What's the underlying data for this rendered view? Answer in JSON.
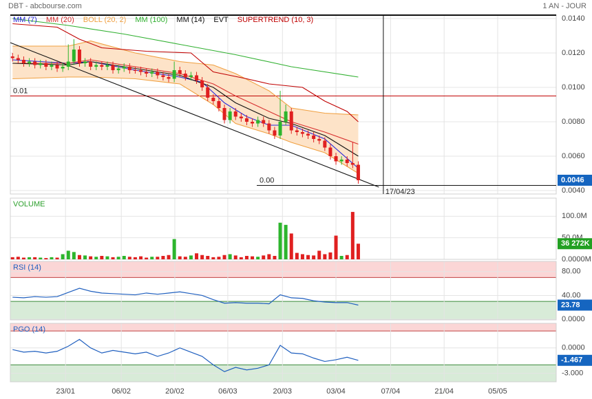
{
  "header": {
    "title": "DBT - abcbourse.com",
    "period": "1 AN - JOUR"
  },
  "chart_data": [
    {
      "type": "candlestick",
      "xlim": [
        -0.4,
        97.5
      ],
      "xticks": [
        {
          "value": 9.5,
          "label": "23/01"
        },
        {
          "value": 19.5,
          "label": "06/02"
        },
        {
          "value": 29.1,
          "label": "20/02"
        },
        {
          "value": 38.6,
          "label": "06/03"
        },
        {
          "value": 48.4,
          "label": "20/03"
        },
        {
          "value": 58.0,
          "label": "03/04"
        },
        {
          "value": 67.8,
          "label": "07/04"
        },
        {
          "value": 77.4,
          "label": "21/04"
        },
        {
          "value": 87.0,
          "label": "05/05"
        }
      ],
      "ylim": [
        0.0038,
        0.0142
      ],
      "yticks": [
        {
          "value": 0.004,
          "label": "0.0040"
        },
        {
          "value": 0.006,
          "label": "0.0060"
        },
        {
          "value": 0.008,
          "label": "0.0080"
        },
        {
          "value": 0.01,
          "label": "0.0100"
        },
        {
          "value": 0.012,
          "label": "0.0120"
        },
        {
          "value": 0.014,
          "label": "0.0140"
        }
      ],
      "grid": true,
      "up_color": "#2db52d",
      "down_color": "#e02020",
      "open": [
        0.0118,
        0.0117,
        0.0116,
        0.0114,
        0.0115,
        0.0113,
        0.0114,
        0.0112,
        0.0113,
        0.0111,
        0.0112,
        0.0115,
        0.0122,
        0.0114,
        0.0115,
        0.0112,
        0.0113,
        0.0112,
        0.0113,
        0.011,
        0.0111,
        0.0112,
        0.011,
        0.011,
        0.0109,
        0.0108,
        0.0109,
        0.0107,
        0.0106,
        0.0105,
        0.011,
        0.0108,
        0.0106,
        0.0107,
        0.0104,
        0.01,
        0.0094,
        0.0092,
        0.0088,
        0.0081,
        0.0086,
        0.0083,
        0.0082,
        0.008,
        0.0079,
        0.0081,
        0.0079,
        0.0075,
        0.0072,
        0.008,
        0.0086,
        0.0075,
        0.0074,
        0.0073,
        0.0072,
        0.007,
        0.0069,
        0.0065,
        0.006,
        0.0057,
        0.0058,
        0.0056,
        0.0055
      ],
      "high": [
        0.012,
        0.0119,
        0.0118,
        0.0117,
        0.0117,
        0.0116,
        0.0116,
        0.0115,
        0.0115,
        0.0114,
        0.0125,
        0.0128,
        0.0124,
        0.0117,
        0.0117,
        0.0115,
        0.0115,
        0.0115,
        0.0115,
        0.0113,
        0.0114,
        0.0114,
        0.0112,
        0.0112,
        0.0111,
        0.0111,
        0.0111,
        0.0109,
        0.0108,
        0.0115,
        0.0112,
        0.011,
        0.0109,
        0.0109,
        0.0106,
        0.0102,
        0.0096,
        0.0094,
        0.009,
        0.0088,
        0.0088,
        0.0085,
        0.0084,
        0.0082,
        0.0083,
        0.0083,
        0.0081,
        0.0077,
        0.0098,
        0.009,
        0.0088,
        0.0077,
        0.0076,
        0.0075,
        0.0074,
        0.0072,
        0.0071,
        0.0067,
        0.0062,
        0.006,
        0.006,
        0.0068,
        0.0057
      ],
      "low": [
        0.0115,
        0.0114,
        0.0112,
        0.0112,
        0.0111,
        0.0111,
        0.011,
        0.011,
        0.0109,
        0.0109,
        0.011,
        0.0113,
        0.0112,
        0.0112,
        0.011,
        0.011,
        0.011,
        0.011,
        0.0108,
        0.0108,
        0.0109,
        0.0108,
        0.0108,
        0.0107,
        0.0106,
        0.0106,
        0.0105,
        0.0104,
        0.0103,
        0.0103,
        0.0106,
        0.0104,
        0.0104,
        0.0102,
        0.0098,
        0.0092,
        0.009,
        0.0086,
        0.0079,
        0.0079,
        0.0081,
        0.008,
        0.0078,
        0.0077,
        0.0077,
        0.0077,
        0.0073,
        0.007,
        0.007,
        0.0078,
        0.0073,
        0.0072,
        0.0071,
        0.007,
        0.0068,
        0.0067,
        0.0063,
        0.0058,
        0.0055,
        0.0055,
        0.0054,
        0.0053,
        0.0044
      ],
      "close": [
        0.0117,
        0.0116,
        0.0114,
        0.0115,
        0.0113,
        0.0114,
        0.0112,
        0.0113,
        0.0111,
        0.0112,
        0.0115,
        0.0122,
        0.0114,
        0.0115,
        0.0112,
        0.0113,
        0.0112,
        0.0113,
        0.011,
        0.0111,
        0.0112,
        0.011,
        0.011,
        0.0109,
        0.0108,
        0.0109,
        0.0107,
        0.0106,
        0.0105,
        0.011,
        0.0108,
        0.0106,
        0.0107,
        0.0104,
        0.01,
        0.0094,
        0.0092,
        0.0088,
        0.0081,
        0.0086,
        0.0083,
        0.0082,
        0.008,
        0.0079,
        0.0081,
        0.0079,
        0.0075,
        0.0072,
        0.008,
        0.0086,
        0.0075,
        0.0074,
        0.0073,
        0.0072,
        0.007,
        0.0069,
        0.0065,
        0.006,
        0.0057,
        0.0058,
        0.0056,
        0.0055,
        0.0046
      ],
      "series": [
        {
          "name": "MM (7)",
          "color": "#2a2ad8",
          "x": [
            0,
            10,
            14,
            22,
            30,
            34,
            38,
            42,
            46,
            50,
            56,
            62
          ],
          "values": [
            0.0116,
            0.0114,
            0.0115,
            0.011,
            0.0106,
            0.0103,
            0.0091,
            0.0083,
            0.0078,
            0.0078,
            0.007,
            0.0053
          ]
        },
        {
          "name": "MM (20)",
          "color": "#d83030",
          "x": [
            0,
            10,
            14,
            22,
            30,
            36,
            40,
            46,
            50,
            56,
            62
          ],
          "values": [
            0.0114,
            0.0114,
            0.0116,
            0.0112,
            0.0108,
            0.0102,
            0.0095,
            0.0086,
            0.008,
            0.0074,
            0.0067
          ]
        },
        {
          "name": "BOLL (20, 2)",
          "color": "#f0a040",
          "fill": "#fde3c8",
          "x": [
            0,
            10,
            14,
            22,
            30,
            36,
            40,
            46,
            50,
            56,
            62
          ],
          "values": [
            0.0124,
            0.0124,
            0.0127,
            0.012,
            0.0115,
            0.0113,
            0.0108,
            0.0098,
            0.0088,
            0.0085,
            0.0084
          ],
          "lower": [
            0.0105,
            0.0106,
            0.0106,
            0.0105,
            0.0102,
            0.009,
            0.0079,
            0.0073,
            0.0068,
            0.0062,
            0.005
          ]
        },
        {
          "name": "MM (100)",
          "color": "#30b030",
          "x": [
            0,
            10,
            20,
            30,
            40,
            50,
            62
          ],
          "values": [
            0.014,
            0.0136,
            0.0131,
            0.0125,
            0.0119,
            0.0112,
            0.0106
          ]
        },
        {
          "name": "MM (14)",
          "color": "#111111",
          "x": [
            0,
            10,
            14,
            22,
            30,
            36,
            40,
            46,
            50,
            56,
            62
          ],
          "values": [
            0.0114,
            0.0113,
            0.0115,
            0.0111,
            0.0107,
            0.01,
            0.0091,
            0.0082,
            0.0079,
            0.0072,
            0.006
          ]
        },
        {
          "name": "EVT",
          "color": "#111111",
          "x": [
            -0.4,
            65.7
          ],
          "values": [
            0.0126,
            0.0042
          ]
        },
        {
          "name": "SUPERTREND (10, 3)",
          "color": "#c00000",
          "x": [
            0,
            8,
            12,
            16,
            24,
            32,
            36,
            42,
            46,
            52,
            56,
            60,
            62
          ],
          "values": [
            0.0137,
            0.0135,
            0.0128,
            0.0123,
            0.0121,
            0.012,
            0.0109,
            0.0105,
            0.0102,
            0.01,
            0.0092,
            0.0086,
            0.008
          ]
        }
      ],
      "levels": [
        {
          "label": "0.01",
          "value": 0.0095,
          "x": -0.4,
          "color": "#c00000"
        },
        {
          "label": "0.00",
          "value": 0.0043,
          "x": 43.8,
          "color": "#111111"
        }
      ],
      "marker": {
        "x": 66.5,
        "label": "17/04/23"
      },
      "last_value": 0.0046,
      "last_color": "#1565c0"
    },
    {
      "type": "bar",
      "title": "VOLUME",
      "title_color": "#2da02d",
      "ylim": [
        0,
        142
      ],
      "yticks": [
        {
          "value": 0,
          "label": "0.0000M"
        },
        {
          "value": 50,
          "label": "50.0M"
        },
        {
          "value": 100,
          "label": "100.0M"
        }
      ],
      "values": [
        5,
        6,
        4,
        5,
        5,
        4,
        3,
        5,
        4,
        12,
        20,
        17,
        10,
        9,
        7,
        6,
        8,
        7,
        5,
        6,
        8,
        6,
        5,
        7,
        4,
        6,
        6,
        8,
        10,
        47,
        7,
        6,
        9,
        14,
        10,
        8,
        5,
        6,
        10,
        12,
        9,
        5,
        8,
        7,
        6,
        9,
        12,
        8,
        85,
        80,
        60,
        15,
        12,
        10,
        9,
        20,
        12,
        16,
        55,
        8,
        10,
        110,
        36.272
      ],
      "last_value": 36.272,
      "last_label": "36 272K",
      "last_color": "#22a022"
    },
    {
      "type": "line",
      "title": "RSI (14)",
      "title_color": "#1f5fbf",
      "color": "#1f5fbf",
      "ylim": [
        -1,
        97
      ],
      "yticks": [
        {
          "value": 0,
          "label": "0.0000"
        },
        {
          "value": 40,
          "label": "40.00"
        },
        {
          "value": 80,
          "label": "80.00"
        }
      ],
      "overbought": 70,
      "oversold": 30,
      "x": [
        0,
        2,
        4,
        6,
        8,
        10,
        12,
        14,
        16,
        18,
        20,
        22,
        24,
        26,
        28,
        30,
        32,
        34,
        36,
        38,
        40,
        42,
        44,
        46,
        48,
        50,
        52,
        54,
        56,
        58,
        60,
        62
      ],
      "values": [
        37,
        36,
        38,
        37,
        38,
        45,
        52,
        47,
        44,
        43,
        42,
        41,
        44,
        42,
        44,
        46,
        43,
        40,
        33,
        27,
        28,
        27,
        27,
        26,
        41,
        36,
        35,
        31,
        29,
        28,
        28,
        23.78
      ],
      "last_value": 23.78,
      "last_color": "#1565c0"
    },
    {
      "type": "line",
      "title": "PGO (14)",
      "title_color": "#1f5fbf",
      "color": "#1f5fbf",
      "ylim": [
        -4,
        2.9
      ],
      "yticks": [
        {
          "value": -3,
          "label": "-3.000"
        },
        {
          "value": 0,
          "label": "0.0000"
        }
      ],
      "overbought": 2,
      "oversold": -2,
      "x": [
        0,
        2,
        4,
        6,
        8,
        10,
        12,
        14,
        16,
        18,
        20,
        22,
        24,
        26,
        28,
        30,
        32,
        34,
        36,
        38,
        40,
        42,
        44,
        46,
        48,
        50,
        52,
        54,
        56,
        58,
        60,
        62
      ],
      "values": [
        -0.2,
        -0.5,
        -0.4,
        -0.6,
        -0.4,
        0.2,
        1.0,
        0.0,
        -0.6,
        -0.3,
        -0.5,
        -0.7,
        -0.5,
        -1.0,
        -0.6,
        0.0,
        -0.5,
        -1.0,
        -2.0,
        -2.8,
        -2.3,
        -2.6,
        -2.4,
        -2.0,
        0.3,
        -0.6,
        -0.7,
        -1.2,
        -1.6,
        -1.4,
        -1.1,
        -1.467
      ],
      "last_value": -1.467,
      "last_color": "#1565c0"
    }
  ]
}
